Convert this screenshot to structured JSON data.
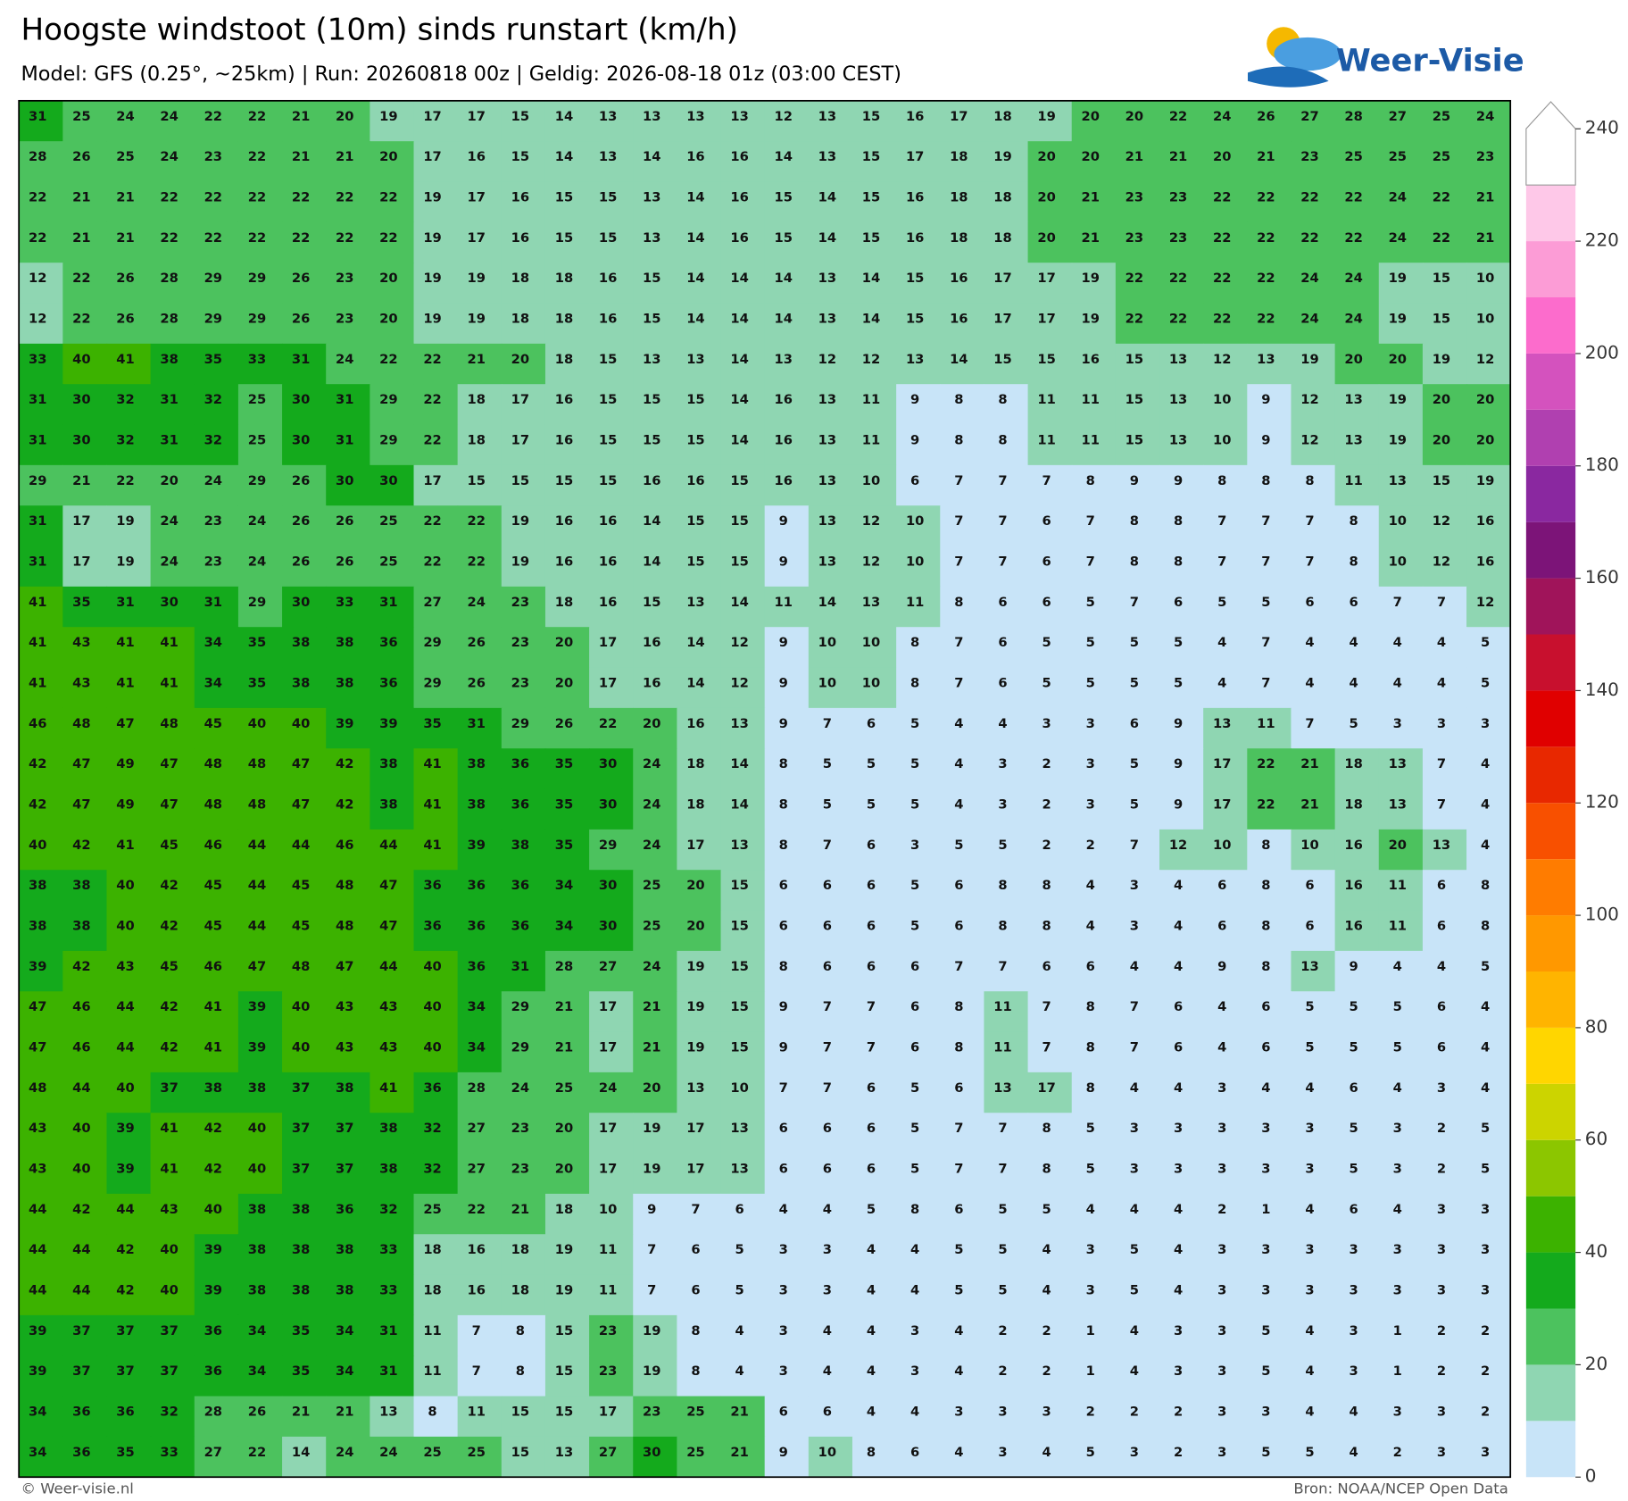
{
  "header": {
    "title": "Hoogste windstoot (10m) sinds runstart (km/h)",
    "subtitle": "Model: GFS (0.25°, ~25km)  |  Run: 20260818 00z  |  Geldig: 2026-08-18 01z (03:00 CEST)",
    "logo": "Weer-Visie"
  },
  "footer": {
    "left": "© Weer-visie.nl",
    "right": "Bron: NOAA/NCEP Open Data"
  },
  "colorbar": {
    "lim": [
      0,
      240
    ],
    "ticks": [
      0,
      20,
      40,
      60,
      80,
      100,
      120,
      140,
      160,
      180,
      200,
      220,
      240
    ],
    "colors": [
      "#c8e4f8",
      "#8fd6b2",
      "#4cc25e",
      "#14aa1c",
      "#3cb200",
      "#8cc600",
      "#ccd400",
      "#ffd600",
      "#ffb400",
      "#ff9800",
      "#ff7c00",
      "#f85000",
      "#e82800",
      "#e00000",
      "#c8102e",
      "#a0145a",
      "#7c1478",
      "#8a28a0",
      "#b040b0",
      "#d452be",
      "#fc6ccc",
      "#fc9cd6",
      "#fec8e8",
      "#ffffff"
    ]
  },
  "grid": {
    "rows": [
      [
        31,
        25,
        24,
        24,
        22,
        22,
        21,
        20,
        19,
        17,
        17,
        15,
        14,
        13,
        13,
        13,
        13,
        12,
        13,
        15,
        16,
        17,
        18,
        19,
        20,
        20,
        22,
        24,
        26,
        27,
        28,
        27,
        25,
        24
      ],
      [
        28,
        26,
        25,
        24,
        23,
        22,
        21,
        21,
        20,
        17,
        16,
        15,
        14,
        13,
        14,
        16,
        16,
        14,
        13,
        15,
        17,
        18,
        19,
        20,
        20,
        21,
        21,
        20,
        21,
        23,
        25,
        25,
        25,
        23
      ],
      [
        22,
        21,
        21,
        22,
        22,
        22,
        22,
        22,
        22,
        19,
        17,
        16,
        15,
        15,
        13,
        14,
        16,
        15,
        14,
        15,
        16,
        18,
        18,
        20,
        21,
        23,
        23,
        22,
        22,
        22,
        22,
        24,
        22,
        21
      ],
      [
        22,
        21,
        21,
        22,
        22,
        22,
        22,
        22,
        22,
        19,
        17,
        16,
        15,
        15,
        13,
        14,
        16,
        15,
        14,
        15,
        16,
        18,
        18,
        20,
        21,
        23,
        23,
        22,
        22,
        22,
        22,
        24,
        22,
        21
      ],
      [
        12,
        22,
        26,
        28,
        29,
        29,
        26,
        23,
        20,
        19,
        19,
        18,
        18,
        16,
        15,
        14,
        14,
        14,
        13,
        14,
        15,
        16,
        17,
        17,
        19,
        22,
        22,
        22,
        22,
        24,
        24,
        19,
        15,
        10
      ],
      [
        12,
        22,
        26,
        28,
        29,
        29,
        26,
        23,
        20,
        19,
        19,
        18,
        18,
        16,
        15,
        14,
        14,
        14,
        13,
        14,
        15,
        16,
        17,
        17,
        19,
        22,
        22,
        22,
        22,
        24,
        24,
        19,
        15,
        10
      ],
      [
        33,
        40,
        41,
        38,
        35,
        33,
        31,
        24,
        22,
        22,
        21,
        20,
        18,
        15,
        13,
        13,
        14,
        13,
        12,
        12,
        13,
        14,
        15,
        15,
        16,
        15,
        13,
        12,
        13,
        19,
        20,
        20,
        19,
        12
      ],
      [
        31,
        30,
        32,
        31,
        32,
        25,
        30,
        31,
        29,
        22,
        18,
        17,
        16,
        15,
        15,
        15,
        14,
        16,
        13,
        11,
        9,
        8,
        8,
        11,
        11,
        15,
        13,
        10,
        9,
        12,
        13,
        19,
        20,
        20
      ],
      [
        31,
        30,
        32,
        31,
        32,
        25,
        30,
        31,
        29,
        22,
        18,
        17,
        16,
        15,
        15,
        15,
        14,
        16,
        13,
        11,
        9,
        8,
        8,
        11,
        11,
        15,
        13,
        10,
        9,
        12,
        13,
        19,
        20,
        20
      ],
      [
        29,
        21,
        22,
        20,
        24,
        29,
        26,
        30,
        30,
        17,
        15,
        15,
        15,
        15,
        16,
        16,
        15,
        16,
        13,
        10,
        6,
        7,
        7,
        7,
        8,
        9,
        9,
        8,
        8,
        8,
        11,
        13,
        15,
        19
      ],
      [
        31,
        17,
        19,
        24,
        23,
        24,
        26,
        26,
        25,
        22,
        22,
        19,
        16,
        16,
        14,
        15,
        15,
        9,
        13,
        12,
        10,
        7,
        7,
        6,
        7,
        8,
        8,
        7,
        7,
        7,
        8,
        10,
        12,
        16
      ],
      [
        31,
        17,
        19,
        24,
        23,
        24,
        26,
        26,
        25,
        22,
        22,
        19,
        16,
        16,
        14,
        15,
        15,
        9,
        13,
        12,
        10,
        7,
        7,
        6,
        7,
        8,
        8,
        7,
        7,
        7,
        8,
        10,
        12,
        16
      ],
      [
        41,
        35,
        31,
        30,
        31,
        29,
        30,
        33,
        31,
        27,
        24,
        23,
        18,
        16,
        15,
        13,
        14,
        11,
        14,
        13,
        11,
        8,
        6,
        6,
        5,
        7,
        6,
        5,
        5,
        6,
        6,
        7,
        7,
        12
      ],
      [
        41,
        43,
        41,
        41,
        34,
        35,
        38,
        38,
        36,
        29,
        26,
        23,
        20,
        17,
        16,
        14,
        12,
        9,
        10,
        10,
        8,
        7,
        6,
        5,
        5,
        5,
        5,
        4,
        7,
        4,
        4,
        4,
        4,
        5
      ],
      [
        41,
        43,
        41,
        41,
        34,
        35,
        38,
        38,
        36,
        29,
        26,
        23,
        20,
        17,
        16,
        14,
        12,
        9,
        10,
        10,
        8,
        7,
        6,
        5,
        5,
        5,
        5,
        4,
        7,
        4,
        4,
        4,
        4,
        5
      ],
      [
        46,
        48,
        47,
        48,
        45,
        40,
        40,
        39,
        39,
        35,
        31,
        29,
        26,
        22,
        20,
        16,
        13,
        9,
        7,
        6,
        5,
        4,
        4,
        3,
        3,
        6,
        9,
        13,
        11,
        7,
        5,
        3,
        3,
        3
      ],
      [
        42,
        47,
        49,
        47,
        48,
        48,
        47,
        42,
        38,
        41,
        38,
        36,
        35,
        30,
        24,
        18,
        14,
        8,
        5,
        5,
        5,
        4,
        3,
        2,
        3,
        5,
        9,
        17,
        22,
        21,
        18,
        13,
        7,
        4
      ],
      [
        42,
        47,
        49,
        47,
        48,
        48,
        47,
        42,
        38,
        41,
        38,
        36,
        35,
        30,
        24,
        18,
        14,
        8,
        5,
        5,
        5,
        4,
        3,
        2,
        3,
        5,
        9,
        17,
        22,
        21,
        18,
        13,
        7,
        4
      ],
      [
        40,
        42,
        41,
        45,
        46,
        44,
        44,
        46,
        44,
        41,
        39,
        38,
        35,
        29,
        24,
        17,
        13,
        8,
        7,
        6,
        3,
        5,
        5,
        2,
        2,
        7,
        12,
        10,
        8,
        10,
        16,
        20,
        13,
        4
      ],
      [
        38,
        38,
        40,
        42,
        45,
        44,
        45,
        48,
        47,
        36,
        36,
        36,
        34,
        30,
        25,
        20,
        15,
        6,
        6,
        6,
        5,
        6,
        8,
        8,
        4,
        3,
        4,
        6,
        8,
        6,
        16,
        11,
        6,
        8
      ],
      [
        38,
        38,
        40,
        42,
        45,
        44,
        45,
        48,
        47,
        36,
        36,
        36,
        34,
        30,
        25,
        20,
        15,
        6,
        6,
        6,
        5,
        6,
        8,
        8,
        4,
        3,
        4,
        6,
        8,
        6,
        16,
        11,
        6,
        8
      ],
      [
        39,
        42,
        43,
        45,
        46,
        47,
        48,
        47,
        44,
        40,
        36,
        31,
        28,
        27,
        24,
        19,
        15,
        8,
        6,
        6,
        6,
        7,
        7,
        6,
        6,
        4,
        4,
        9,
        8,
        13,
        9,
        4,
        4,
        5
      ],
      [
        47,
        46,
        44,
        42,
        41,
        39,
        40,
        43,
        43,
        40,
        34,
        29,
        21,
        17,
        21,
        19,
        15,
        9,
        7,
        7,
        6,
        8,
        11,
        7,
        8,
        7,
        6,
        4,
        6,
        5,
        5,
        5,
        6,
        4
      ],
      [
        47,
        46,
        44,
        42,
        41,
        39,
        40,
        43,
        43,
        40,
        34,
        29,
        21,
        17,
        21,
        19,
        15,
        9,
        7,
        7,
        6,
        8,
        11,
        7,
        8,
        7,
        6,
        4,
        6,
        5,
        5,
        5,
        6,
        4
      ],
      [
        48,
        44,
        40,
        37,
        38,
        38,
        37,
        38,
        41,
        36,
        28,
        24,
        25,
        24,
        20,
        13,
        10,
        7,
        7,
        6,
        5,
        6,
        13,
        17,
        8,
        4,
        4,
        3,
        4,
        4,
        6,
        4,
        3,
        4
      ],
      [
        43,
        40,
        39,
        41,
        42,
        40,
        37,
        37,
        38,
        32,
        27,
        23,
        20,
        17,
        19,
        17,
        13,
        6,
        6,
        6,
        5,
        7,
        7,
        8,
        5,
        3,
        3,
        3,
        3,
        3,
        5,
        3,
        2,
        5
      ],
      [
        43,
        40,
        39,
        41,
        42,
        40,
        37,
        37,
        38,
        32,
        27,
        23,
        20,
        17,
        19,
        17,
        13,
        6,
        6,
        6,
        5,
        7,
        7,
        8,
        5,
        3,
        3,
        3,
        3,
        3,
        5,
        3,
        2,
        5
      ],
      [
        44,
        42,
        44,
        43,
        40,
        38,
        38,
        36,
        32,
        25,
        22,
        21,
        18,
        10,
        9,
        7,
        6,
        4,
        4,
        5,
        8,
        6,
        5,
        5,
        4,
        4,
        4,
        2,
        1,
        4,
        6,
        4,
        3,
        3
      ],
      [
        44,
        44,
        42,
        40,
        39,
        38,
        38,
        38,
        33,
        18,
        16,
        18,
        19,
        11,
        7,
        6,
        5,
        3,
        3,
        4,
        4,
        5,
        5,
        4,
        3,
        5,
        4,
        3,
        3,
        3,
        3,
        3,
        3,
        3
      ],
      [
        44,
        44,
        42,
        40,
        39,
        38,
        38,
        38,
        33,
        18,
        16,
        18,
        19,
        11,
        7,
        6,
        5,
        3,
        3,
        4,
        4,
        5,
        5,
        4,
        3,
        5,
        4,
        3,
        3,
        3,
        3,
        3,
        3,
        3
      ],
      [
        39,
        37,
        37,
        37,
        36,
        34,
        35,
        34,
        31,
        11,
        7,
        8,
        15,
        23,
        19,
        8,
        4,
        3,
        4,
        4,
        3,
        4,
        2,
        2,
        1,
        4,
        3,
        3,
        5,
        4,
        3,
        1,
        2,
        2
      ],
      [
        39,
        37,
        37,
        37,
        36,
        34,
        35,
        34,
        31,
        11,
        7,
        8,
        15,
        23,
        19,
        8,
        4,
        3,
        4,
        4,
        3,
        4,
        2,
        2,
        1,
        4,
        3,
        3,
        5,
        4,
        3,
        1,
        2,
        2
      ],
      [
        34,
        36,
        36,
        32,
        28,
        26,
        21,
        21,
        13,
        8,
        11,
        15,
        15,
        17,
        23,
        25,
        21,
        6,
        6,
        4,
        4,
        3,
        3,
        3,
        2,
        2,
        2,
        3,
        3,
        4,
        4,
        3,
        3,
        2
      ],
      [
        34,
        36,
        35,
        33,
        27,
        22,
        14,
        24,
        24,
        25,
        25,
        15,
        13,
        27,
        30,
        25,
        21,
        9,
        10,
        8,
        6,
        4,
        3,
        4,
        5,
        3,
        2,
        3,
        5,
        5,
        4,
        2,
        3,
        3
      ]
    ]
  }
}
